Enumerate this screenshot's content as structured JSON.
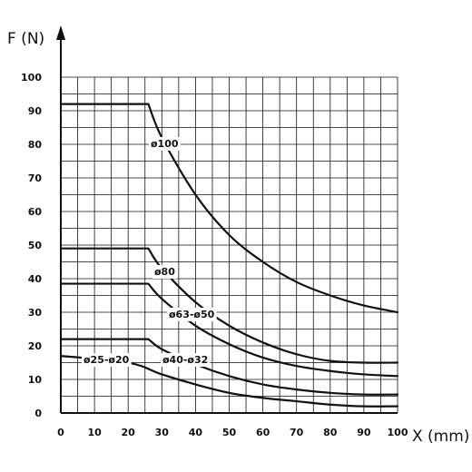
{
  "chart_data": {
    "type": "line",
    "xlabel": "X (mm)",
    "ylabel": "F (N)",
    "xlim": [
      0,
      100
    ],
    "ylim": [
      0,
      100
    ],
    "grid": true,
    "x_ticks": [
      "0",
      "10",
      "20",
      "30",
      "40",
      "50",
      "60",
      "70",
      "80",
      "90",
      "100"
    ],
    "y_ticks": [
      "0",
      "10",
      "20",
      "30",
      "40",
      "50",
      "60",
      "70",
      "80",
      "90",
      "100"
    ],
    "series": [
      {
        "name": "ø100",
        "x": [
          0,
          26,
          30,
          40,
          50,
          60,
          70,
          80,
          90,
          100
        ],
        "y": [
          92,
          92,
          82,
          65,
          53,
          45,
          39,
          35,
          32,
          30
        ]
      },
      {
        "name": "ø80",
        "x": [
          0,
          26,
          30,
          40,
          50,
          60,
          70,
          80,
          90,
          100
        ],
        "y": [
          49,
          49,
          43,
          33,
          26,
          21,
          17.5,
          15.5,
          15,
          15
        ]
      },
      {
        "name": "ø63-ø50",
        "x": [
          0,
          26,
          30,
          40,
          50,
          60,
          70,
          80,
          90,
          100
        ],
        "y": [
          38.5,
          38.5,
          34,
          26,
          20.5,
          16.5,
          14,
          12.5,
          11.5,
          11
        ]
      },
      {
        "name": "ø40-ø32",
        "x": [
          0,
          26,
          30,
          40,
          50,
          60,
          70,
          80,
          90,
          100
        ],
        "y": [
          22,
          22,
          19,
          14.5,
          11,
          8.5,
          7,
          6,
          5.5,
          5.5
        ]
      },
      {
        "name": "ø25-ø20",
        "x": [
          0,
          20,
          30,
          40,
          50,
          60,
          70,
          80,
          90,
          100
        ],
        "y": [
          17,
          15,
          11.5,
          8.5,
          6,
          4.5,
          3.5,
          2.5,
          2,
          2
        ]
      }
    ]
  }
}
